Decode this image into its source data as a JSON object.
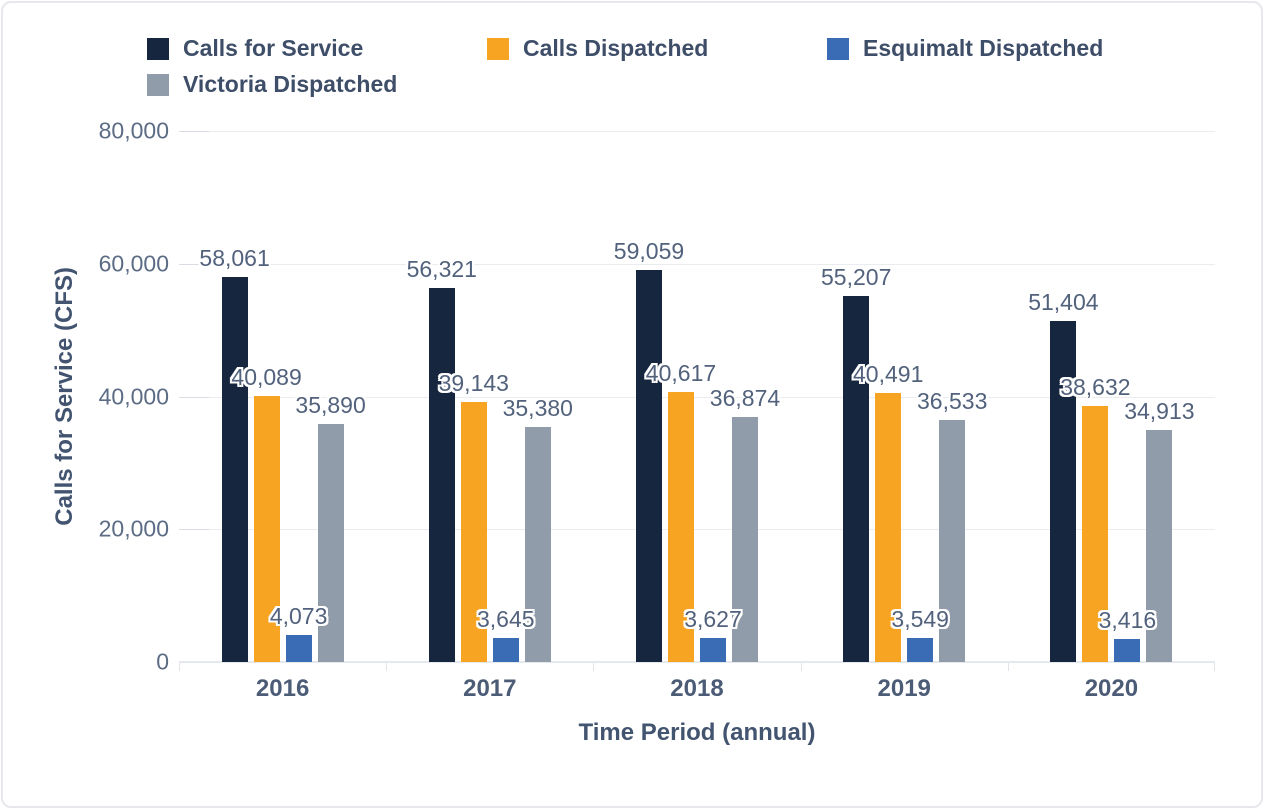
{
  "chart_data": {
    "type": "bar",
    "title": "",
    "categories": [
      "2016",
      "2017",
      "2018",
      "2019",
      "2020"
    ],
    "series": [
      {
        "name": "Calls for Service",
        "color": "#16263e",
        "values": [
          58061,
          56321,
          59059,
          55207,
          51404
        ]
      },
      {
        "name": "Calls Dispatched",
        "color": "#f7a422",
        "values": [
          40089,
          39143,
          40617,
          40491,
          38632
        ]
      },
      {
        "name": "Esquimalt Dispatched",
        "color": "#3a6cb5",
        "values": [
          4073,
          3645,
          3627,
          3549,
          3416
        ]
      },
      {
        "name": "Victoria Dispatched",
        "color": "#919cab",
        "values": [
          35890,
          35380,
          36874,
          36533,
          34913
        ]
      }
    ],
    "xlabel": "Time Period (annual)",
    "ylabel": "Calls for Service (CFS)",
    "ylim": [
      0,
      80000
    ],
    "yticks": [
      0,
      20000,
      40000,
      60000,
      80000
    ],
    "grid": true,
    "legend_position": "top",
    "bar_value_labels": true
  },
  "colors": {
    "card_border": "#e7e7ec",
    "legend_text": "#3e4e68",
    "axis_tick_text": "#5c6c85",
    "bar_label_text": "#52627c",
    "gridline": "#eaecf0"
  }
}
